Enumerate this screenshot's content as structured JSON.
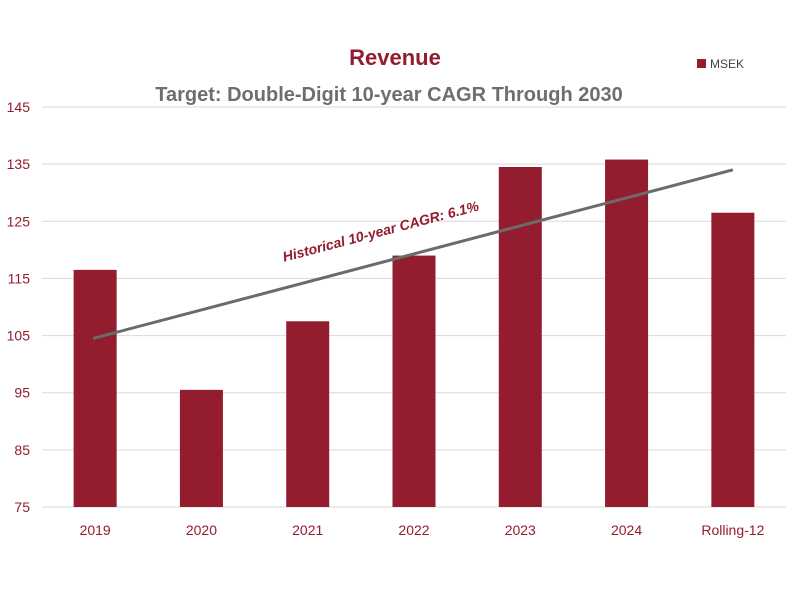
{
  "colors": {
    "bar": "#941c2f",
    "title": "#941c2f",
    "subtitle": "#6e6e6e",
    "tick_text": "#941c2f",
    "gridline": "#d9d9d9",
    "trendline": "#6b6b6b",
    "trend_label": "#941c2f"
  },
  "chart_data": {
    "type": "bar",
    "title": "Revenue",
    "subtitle": "Target: Double-Digit 10-year CAGR Through 2030",
    "xlabel": "",
    "ylabel": "",
    "categories": [
      "2019",
      "2020",
      "2021",
      "2022",
      "2023",
      "2024",
      "Rolling-12"
    ],
    "series": [
      {
        "name": "MSEK",
        "values": [
          116.5,
          95.5,
          107.5,
          119,
          134.5,
          135.8,
          126.5
        ]
      }
    ],
    "ylim": [
      75,
      145
    ],
    "yticks": [
      75,
      85,
      95,
      105,
      115,
      125,
      135,
      145
    ],
    "grid": true,
    "legend": "top-right",
    "trendline": {
      "label": "Historical 10-year CAGR: 6.1%",
      "start": {
        "category": "2019",
        "value": 104.5
      },
      "end": {
        "category": "Rolling-12",
        "value": 134
      }
    }
  }
}
